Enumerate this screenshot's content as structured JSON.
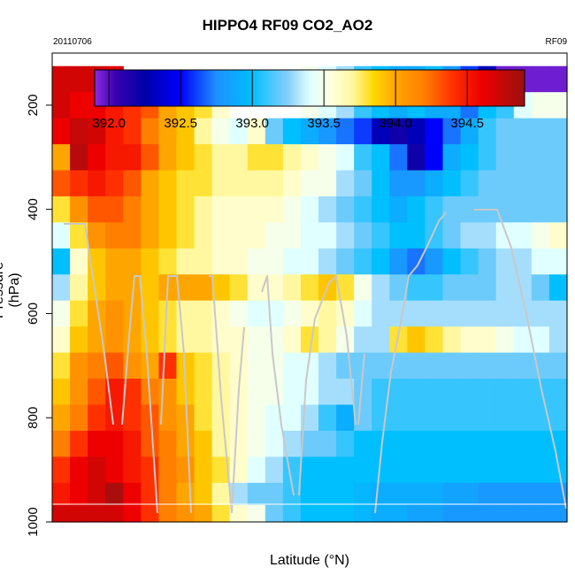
{
  "chart_data": {
    "type": "heatmap",
    "title": "HIPPO4 RF09 CO2_AO2",
    "date_label": "20110706",
    "flight_label": "RF09",
    "xlabel": "Latitude (°N)",
    "ylabel": "Pressure (hPa)",
    "y_ticks": [
      200,
      400,
      600,
      800,
      1000
    ],
    "y_range": [
      1000,
      100
    ],
    "colorbar": {
      "ticks": [
        392.0,
        392.5,
        393.0,
        393.5,
        394.0,
        394.5
      ],
      "tick_labels": [
        "392.0",
        "392.5",
        "393.0",
        "393.5",
        "394.0",
        "394.5"
      ],
      "range": [
        391.9,
        394.9
      ]
    },
    "palette_stops": [
      [
        391.9,
        "#8a2be2"
      ],
      [
        392.05,
        "#3a00b0"
      ],
      [
        392.25,
        "#0000a8"
      ],
      [
        392.5,
        "#0000ff"
      ],
      [
        392.75,
        "#1e90ff"
      ],
      [
        393.0,
        "#00bfff"
      ],
      [
        393.25,
        "#87cefa"
      ],
      [
        393.4,
        "#e0ffff"
      ],
      [
        393.55,
        "#ffffe0"
      ],
      [
        393.7,
        "#fff8a0"
      ],
      [
        393.85,
        "#ffd700"
      ],
      [
        394.0,
        "#ffa500"
      ],
      [
        394.2,
        "#ff7f00"
      ],
      [
        394.4,
        "#ff3000"
      ],
      [
        394.6,
        "#ee0000"
      ],
      [
        394.9,
        "#9b1010"
      ]
    ],
    "grid_columns": 29,
    "row_pressures": [
      150,
      200,
      250,
      300,
      350,
      400,
      450,
      500,
      550,
      600,
      650,
      700,
      750,
      800,
      850,
      900,
      950,
      985
    ],
    "grid_values": [
      [
        394.7,
        394.7,
        394.7,
        394.65,
        null,
        null,
        null,
        null,
        null,
        null,
        null,
        null,
        null,
        null,
        393.5,
        393.4,
        393.3,
        393.1,
        393.0,
        392.9,
        392.9,
        393.0,
        392.8,
        392.6,
        392.3,
        391.95,
        391.95,
        391.95,
        391.95
      ],
      [
        394.7,
        394.6,
        394.6,
        394.5,
        394.4,
        394.3,
        394.0,
        393.9,
        393.8,
        393.6,
        null,
        null,
        null,
        null,
        393.5,
        393.4,
        393.3,
        393.1,
        393.0,
        392.9,
        393.0,
        392.9,
        392.9,
        392.7,
        393.0,
        393.1,
        393.4,
        393.5,
        393.5
      ],
      [
        394.6,
        394.75,
        394.7,
        394.5,
        394.4,
        394.2,
        394.0,
        393.9,
        393.7,
        393.5,
        393.4,
        393.6,
        393.2,
        393.0,
        392.9,
        392.8,
        392.7,
        392.6,
        392.3,
        392.2,
        392.3,
        392.5,
        392.7,
        392.9,
        393.1,
        393.2,
        393.2,
        393.2,
        393.2
      ],
      [
        394.0,
        394.8,
        394.6,
        394.5,
        394.5,
        394.3,
        394.0,
        393.9,
        393.8,
        393.7,
        393.7,
        393.8,
        393.8,
        393.7,
        393.6,
        393.5,
        393.4,
        393.1,
        393.0,
        392.7,
        392.2,
        392.5,
        392.9,
        393.0,
        393.1,
        393.2,
        393.2,
        393.2,
        393.2
      ],
      [
        394.3,
        394.4,
        394.5,
        394.4,
        394.3,
        394.0,
        393.9,
        393.8,
        393.8,
        393.7,
        393.7,
        393.7,
        393.7,
        393.6,
        393.5,
        393.5,
        393.3,
        393.2,
        393.0,
        392.8,
        392.8,
        392.9,
        393.0,
        393.1,
        393.2,
        393.2,
        393.2,
        393.2,
        393.2
      ],
      [
        393.8,
        394.1,
        394.3,
        394.3,
        394.2,
        394.0,
        393.9,
        393.8,
        393.7,
        393.6,
        393.6,
        393.6,
        393.6,
        393.5,
        393.4,
        393.3,
        393.2,
        393.1,
        393.0,
        392.9,
        393.0,
        393.1,
        393.2,
        393.2,
        393.2,
        393.2,
        393.2,
        393.2,
        393.2
      ],
      [
        393.4,
        393.8,
        394.1,
        394.2,
        394.2,
        394.0,
        393.9,
        393.8,
        393.7,
        393.6,
        393.6,
        393.6,
        393.5,
        393.5,
        393.4,
        393.4,
        393.3,
        393.2,
        393.1,
        393.0,
        393.0,
        393.1,
        393.2,
        393.3,
        393.3,
        393.4,
        393.4,
        393.5,
        393.6
      ],
      [
        393.0,
        393.6,
        393.9,
        394.0,
        394.0,
        393.9,
        393.8,
        393.7,
        393.7,
        393.6,
        393.6,
        393.5,
        393.5,
        393.4,
        393.4,
        393.3,
        393.2,
        393.1,
        393.0,
        392.8,
        392.7,
        392.8,
        393.0,
        393.1,
        393.2,
        393.3,
        393.3,
        393.4,
        393.4
      ],
      [
        393.3,
        393.7,
        393.9,
        394.0,
        394.0,
        393.9,
        394.0,
        394.0,
        394.0,
        393.9,
        393.8,
        393.6,
        393.6,
        393.7,
        393.8,
        393.9,
        393.8,
        393.5,
        393.3,
        393.2,
        393.1,
        393.1,
        393.2,
        393.2,
        393.2,
        393.3,
        393.3,
        393.2,
        393.0
      ],
      [
        393.5,
        393.8,
        394.0,
        394.1,
        394.0,
        393.9,
        393.8,
        393.7,
        393.7,
        393.6,
        393.5,
        393.4,
        393.4,
        393.5,
        393.6,
        393.7,
        393.6,
        393.4,
        393.3,
        393.3,
        393.3,
        393.3,
        393.3,
        393.3,
        393.3,
        393.3,
        393.3,
        393.3,
        393.3
      ],
      [
        393.6,
        393.9,
        394.0,
        394.1,
        394.0,
        393.9,
        393.8,
        393.7,
        393.7,
        393.6,
        393.6,
        393.5,
        393.5,
        393.6,
        393.8,
        393.7,
        393.5,
        393.3,
        393.3,
        393.8,
        393.9,
        393.8,
        393.7,
        393.6,
        393.6,
        393.5,
        393.4,
        393.4,
        393.3
      ],
      [
        393.8,
        394.1,
        394.2,
        394.3,
        394.1,
        394.0,
        394.4,
        393.9,
        393.8,
        393.7,
        393.6,
        393.5,
        393.5,
        393.4,
        393.4,
        393.3,
        393.2,
        393.2,
        393.2,
        393.2,
        393.2,
        393.2,
        393.2,
        393.2,
        393.2,
        393.2,
        393.2,
        393.2,
        393.2
      ],
      [
        393.9,
        394.1,
        394.3,
        394.5,
        394.4,
        394.2,
        394.1,
        393.9,
        393.8,
        393.7,
        393.6,
        393.5,
        393.5,
        393.4,
        393.4,
        393.3,
        393.3,
        393.2,
        393.1,
        393.1,
        393.1,
        393.1,
        393.1,
        393.1,
        393.1,
        393.1,
        393.1,
        393.1,
        393.1
      ],
      [
        394.0,
        394.2,
        394.4,
        394.5,
        394.4,
        394.3,
        394.1,
        394.0,
        393.8,
        393.7,
        393.6,
        393.5,
        393.4,
        393.4,
        393.3,
        393.1,
        392.9,
        393.2,
        393.1,
        393.1,
        393.1,
        393.1,
        393.1,
        393.1,
        393.1,
        393.1,
        393.1,
        393.1,
        393.1
      ],
      [
        394.2,
        394.4,
        394.6,
        394.6,
        394.5,
        394.3,
        394.2,
        394.0,
        393.9,
        393.7,
        393.6,
        393.5,
        393.4,
        393.3,
        393.2,
        393.2,
        393.1,
        393.0,
        393.0,
        393.0,
        393.0,
        393.0,
        393.0,
        393.0,
        393.0,
        393.0,
        393.0,
        393.0,
        393.0
      ],
      [
        394.4,
        394.6,
        394.7,
        394.6,
        394.5,
        394.4,
        394.2,
        394.1,
        393.9,
        393.8,
        393.6,
        393.4,
        393.3,
        393.1,
        393.0,
        393.0,
        393.0,
        393.0,
        393.0,
        393.0,
        393.0,
        393.0,
        393.0,
        393.0,
        393.0,
        393.0,
        393.0,
        393.0,
        393.0
      ],
      [
        394.5,
        394.6,
        394.7,
        394.85,
        394.6,
        394.4,
        394.2,
        394.0,
        393.9,
        393.7,
        393.3,
        393.2,
        393.2,
        393.1,
        393.0,
        393.0,
        393.0,
        392.95,
        392.9,
        392.9,
        392.9,
        392.9,
        392.85,
        392.85,
        392.8,
        392.8,
        392.8,
        392.8,
        392.8
      ],
      [
        394.7,
        394.7,
        394.7,
        394.7,
        394.6,
        394.4,
        394.2,
        394.1,
        394.0,
        393.8,
        393.6,
        393.5,
        393.2,
        393.1,
        393.0,
        393.0,
        393.0,
        392.95,
        392.9,
        392.9,
        392.85,
        392.85,
        392.8,
        392.8,
        392.8,
        392.8,
        392.8,
        392.8,
        392.8
      ]
    ]
  }
}
